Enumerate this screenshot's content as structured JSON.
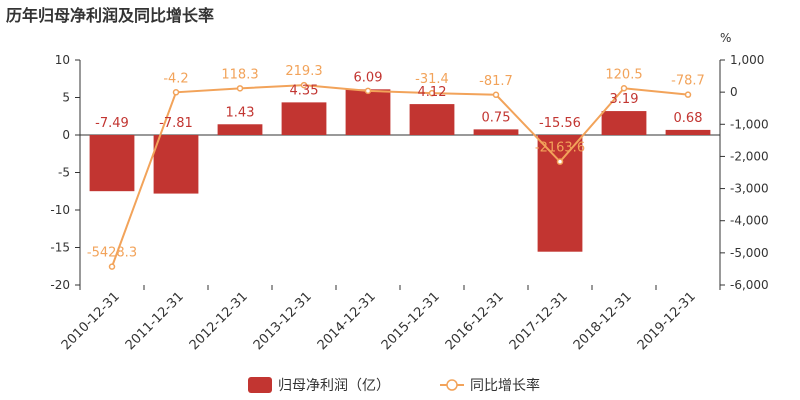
{
  "title": "历年归母净利润及同比增长率",
  "chart_data": {
    "type": "bar",
    "categories": [
      "2010-12-31",
      "2011-12-31",
      "2012-12-31",
      "2013-12-31",
      "2014-12-31",
      "2015-12-31",
      "2016-12-31",
      "2017-12-31",
      "2018-12-31",
      "2019-12-31"
    ],
    "series": [
      {
        "name": "归母净利润（亿）",
        "type": "bar",
        "axis": "left",
        "color": "#c23531",
        "values": [
          -7.49,
          -7.81,
          1.43,
          4.35,
          6.09,
          4.12,
          0.75,
          -15.56,
          3.19,
          0.68
        ],
        "labels": [
          "-7.49",
          "-7.81",
          "1.43",
          "4.35",
          "6.09",
          "4.12",
          "0.75",
          "-15.56",
          "3.19",
          "0.68"
        ]
      },
      {
        "name": "同比增长率",
        "type": "line",
        "axis": "right",
        "color": "#f2a35a",
        "values": [
          -5428.3,
          -4.2,
          118.3,
          219.3,
          40.0,
          -31.4,
          -81.7,
          -2163.6,
          120.5,
          -78.7
        ],
        "labels": [
          "-5428.3",
          "-4.2",
          "118.3",
          "219.3",
          "",
          "-31.4",
          "-81.7",
          "-2163.6",
          "120.5",
          "-78.7"
        ]
      }
    ],
    "y_left": {
      "min": -20,
      "max": 10,
      "ticks": [
        "10",
        "5",
        "0",
        "-5",
        "-10",
        "-15",
        "-20"
      ]
    },
    "y_right": {
      "min": -6000,
      "max": 1000,
      "unit": "%",
      "ticks": [
        "1,000",
        "0",
        "-1,000",
        "-2,000",
        "-3,000",
        "-4,000",
        "-5,000",
        "-6,000"
      ]
    },
    "grid": false,
    "legend_position": "bottom"
  }
}
